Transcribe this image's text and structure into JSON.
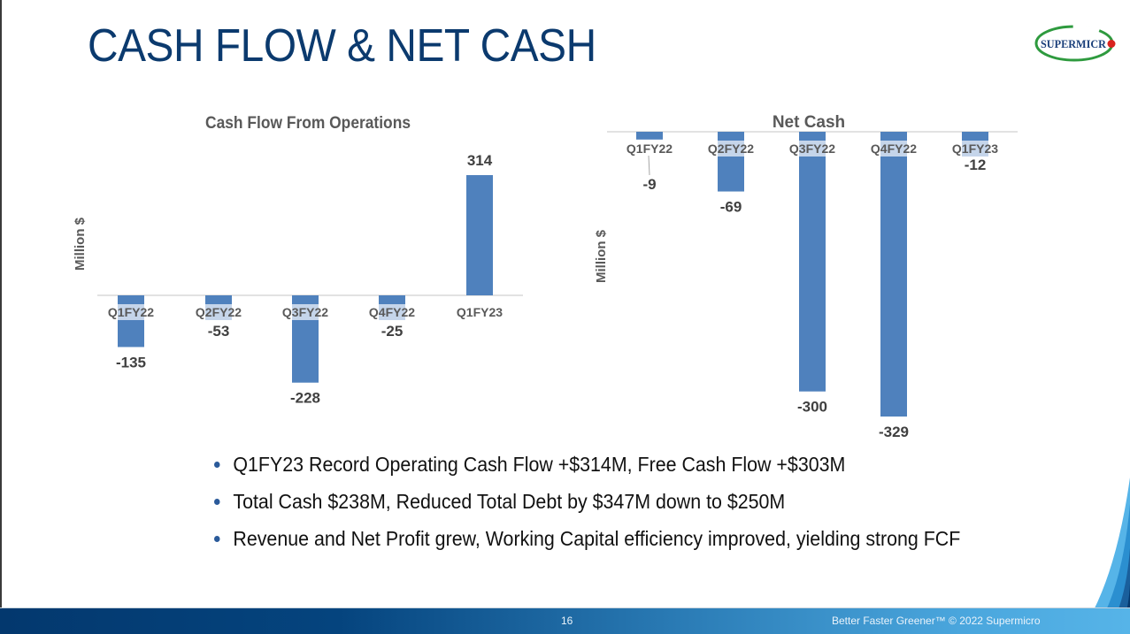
{
  "slide": {
    "title": "CASH FLOW & NET CASH",
    "logo_text": "SUPERMICRO",
    "page_number": "16",
    "footer_text": "Better Faster Greener™  © 2022 Supermicro",
    "bullets": [
      "Q1FY23 Record Operating Cash Flow +$314M, Free Cash Flow +$303M",
      "Total Cash $238M, Reduced Total Debt by $347M down to $250M",
      "Revenue and Net Profit grew, Working Capital efficiency improved, yielding strong FCF"
    ],
    "colors": {
      "title": "#0b3a6e",
      "bar": "#4f81bd",
      "footer": "#03386e"
    }
  },
  "chart_data": [
    {
      "type": "bar",
      "title": "Cash Flow From Operations",
      "xlabel": "",
      "ylabel": "Million $",
      "categories": [
        "Q1FY22",
        "Q2FY22",
        "Q3FY22",
        "Q4FY22",
        "Q1FY23"
      ],
      "values": [
        -135,
        -53,
        -228,
        -25,
        314
      ],
      "data_labels": [
        "-135",
        "-53",
        "-228",
        "-25",
        "314"
      ],
      "ylim": [
        -240,
        330
      ],
      "grid": false,
      "legend": "none"
    },
    {
      "type": "bar",
      "title": "Net Cash",
      "xlabel": "",
      "ylabel": "Million $",
      "categories": [
        "Q1FY22",
        "Q2FY22",
        "Q3FY22",
        "Q4FY22",
        "Q1FY23"
      ],
      "values": [
        -9,
        -69,
        -300,
        -329,
        -12
      ],
      "data_labels": [
        "-9",
        "-69",
        "-300",
        "-329",
        "-12"
      ],
      "ylim": [
        -340,
        0
      ],
      "grid": false,
      "legend": "none"
    }
  ]
}
